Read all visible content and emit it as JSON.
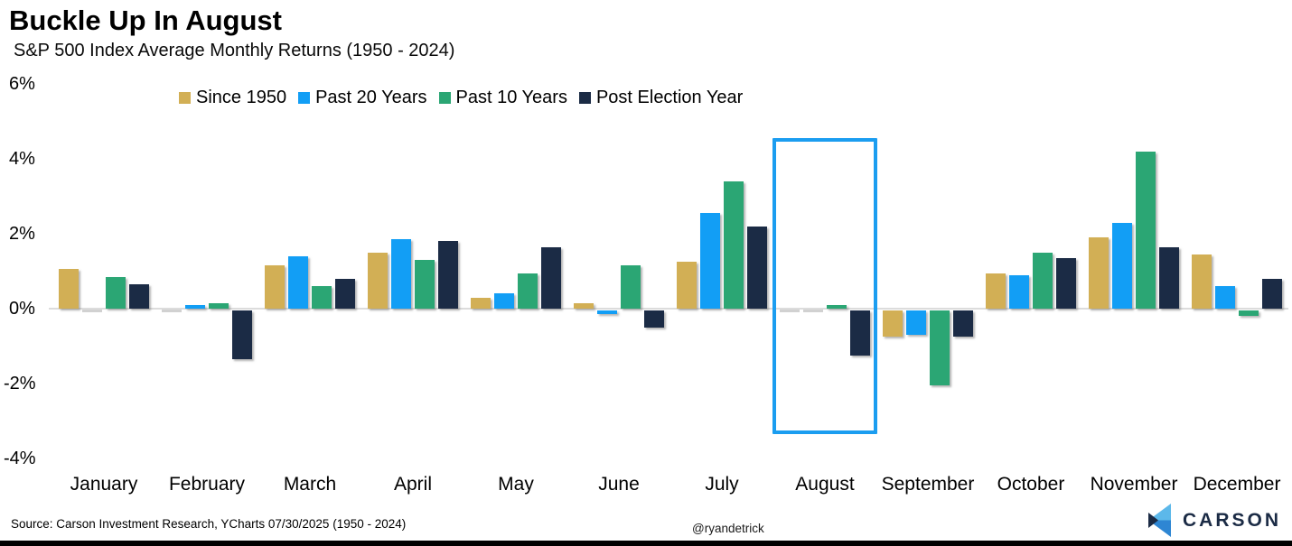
{
  "header": {
    "title": "Buckle Up In August",
    "subtitle": "S&P 500 Index Average Monthly Returns (1950 - 2024)"
  },
  "footer": {
    "source": "Source: Carson Investment Research, YCharts 07/30/2025 (1950 - 2024)",
    "handle": "@ryandetrick",
    "brand": "CARSON"
  },
  "chart_data": {
    "type": "bar",
    "title": "Buckle Up In August",
    "subtitle": "S&P 500 Index Average Monthly Returns (1950 - 2024)",
    "categories": [
      "January",
      "February",
      "March",
      "April",
      "May",
      "June",
      "July",
      "August",
      "September",
      "October",
      "November",
      "December"
    ],
    "series": [
      {
        "name": "Since 1950",
        "color": "#d2af55",
        "values": [
          1.05,
          0.0,
          1.15,
          1.5,
          0.3,
          0.15,
          1.25,
          0.0,
          -0.7,
          0.95,
          1.9,
          1.45
        ]
      },
      {
        "name": "Past 20 Years",
        "color": "#129ef5",
        "values": [
          0.0,
          0.1,
          1.4,
          1.85,
          0.4,
          -0.1,
          2.55,
          0.0,
          -0.65,
          0.9,
          2.3,
          0.6
        ]
      },
      {
        "name": "Past 10 Years",
        "color": "#2ba674",
        "values": [
          0.85,
          0.15,
          0.6,
          1.3,
          0.95,
          1.15,
          3.4,
          0.1,
          -2.0,
          1.5,
          4.2,
          -0.15
        ]
      },
      {
        "name": "Post Election Year",
        "color": "#1b2b45",
        "values": [
          0.65,
          -1.3,
          0.8,
          1.8,
          1.65,
          -0.45,
          2.2,
          -1.2,
          -0.7,
          1.35,
          1.65,
          0.8
        ]
      }
    ],
    "ylim": [
      -4,
      6
    ],
    "yticks": [
      6,
      4,
      2,
      0,
      -2,
      -4
    ],
    "ytick_labels": [
      "6%",
      "4%",
      "2%",
      "0%",
      "-2%",
      "-4%"
    ],
    "grid": false,
    "legend_position": "top",
    "highlight_month": "August",
    "highlight_color": "#1b9df0",
    "logo_colors": {
      "light": "#5cb8ea",
      "mid": "#2e86d3",
      "dark": "#1b2b45"
    }
  }
}
